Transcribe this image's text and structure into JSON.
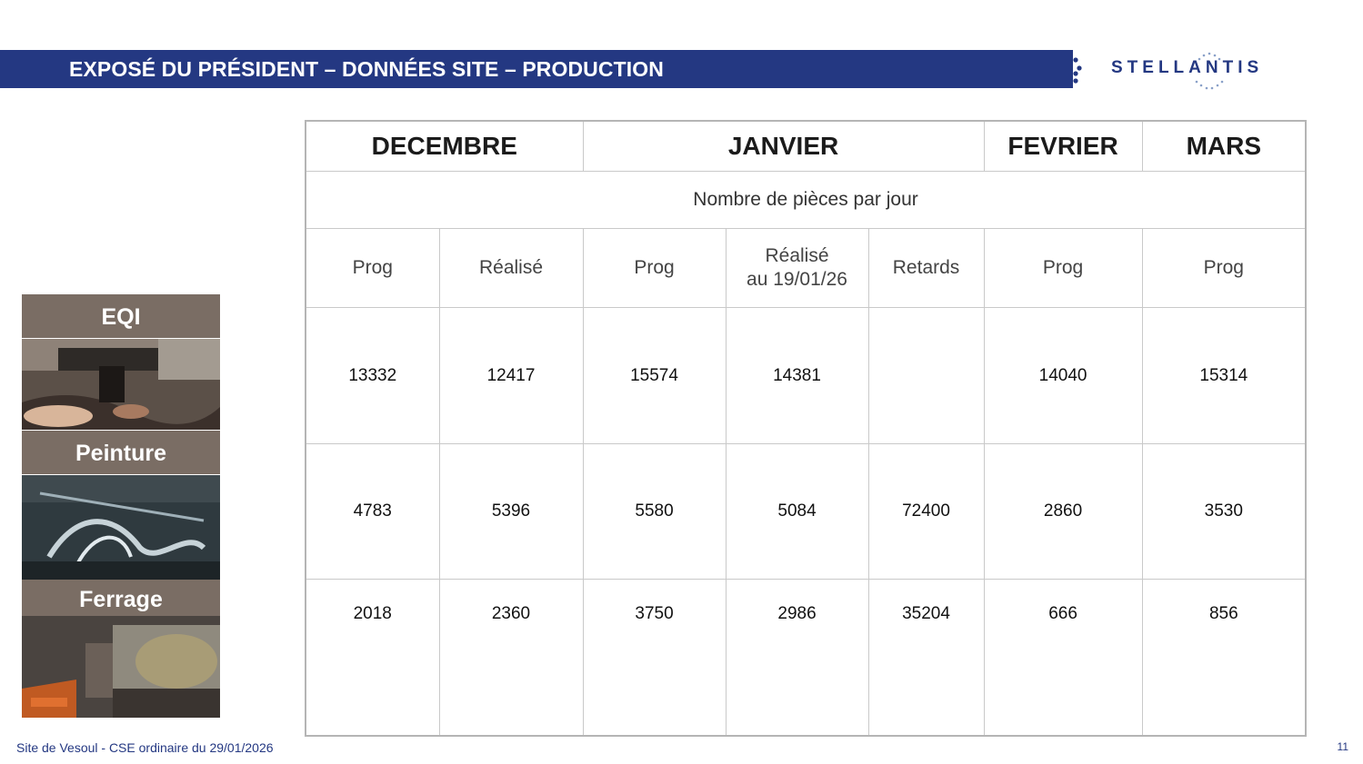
{
  "header": {
    "title": "EXPOSÉ DU PRÉSIDENT – DONNÉES SITE – PRODUCTION",
    "logo_text": "STELLANTIS"
  },
  "side_panel": {
    "sections": [
      {
        "label": "EQI"
      },
      {
        "label": "Peinture"
      },
      {
        "label": "Ferrage"
      }
    ]
  },
  "table": {
    "months": [
      "DECEMBRE",
      "JANVIER",
      "FEVRIER",
      "MARS"
    ],
    "unit_label": "Nombre de pièces par jour",
    "subheaders": [
      [
        "Prog"
      ],
      [
        "Réalisé"
      ],
      [
        "Prog"
      ],
      [
        "Réalisé",
        "au 19/01/26"
      ],
      [
        "Retards"
      ],
      [
        "Prog"
      ],
      [
        "Prog"
      ]
    ],
    "rows": [
      [
        "13332",
        "12417",
        "15574",
        "14381",
        "",
        "14040",
        "15314"
      ],
      [
        "4783",
        "5396",
        "5580",
        "5084",
        "72400",
        "2860",
        "3530"
      ],
      [
        "2018",
        "2360",
        "3750",
        "2986",
        "35204",
        "666",
        "856"
      ]
    ]
  },
  "footer": {
    "left": "Site de Vesoul - CSE ordinaire du 29/01/2026",
    "page_number": "11"
  },
  "colors": {
    "brand_blue": "#243882",
    "side_label_bg": "#7a6d64"
  }
}
